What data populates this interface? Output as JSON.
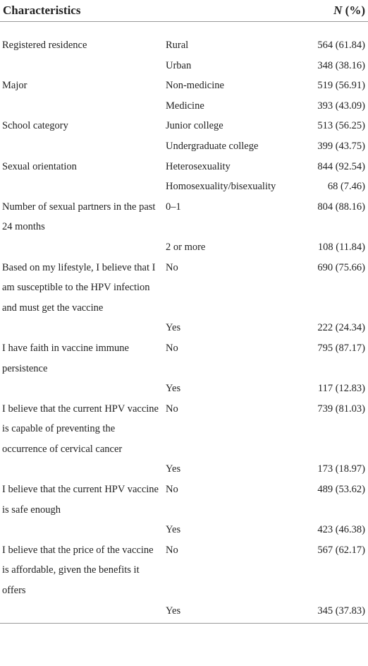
{
  "header": {
    "characteristics": "Characteristics",
    "n_symbol": "N",
    "n_unit": "(%)"
  },
  "table": {
    "rows": [
      [
        "Registered residence",
        "Rural",
        "564 (61.84)"
      ],
      [
        null,
        "Urban",
        "348 (38.16)"
      ],
      [
        "Major",
        "Non-medicine",
        "519 (56.91)"
      ],
      [
        null,
        "Medicine",
        "393 (43.09)"
      ],
      [
        "School category",
        "Junior college",
        "513 (56.25)"
      ],
      [
        null,
        "Undergraduate college",
        "399 (43.75)"
      ],
      [
        "Sexual orientation",
        "Heterosexuality",
        "844 (92.54)"
      ],
      [
        null,
        "Homosexuality/bisexuality",
        "68 (7.46)"
      ],
      [
        "Number of sexual partners in the past 24 months",
        "0–1",
        "804 (88.16)"
      ],
      [
        null,
        "2 or more",
        "108 (11.84)"
      ],
      [
        "Based on my lifestyle, I believe that I am susceptible to the HPV infection and must get the vaccine",
        "No",
        "690 (75.66)"
      ],
      [
        null,
        "Yes",
        "222 (24.34)"
      ],
      [
        "I have faith in vaccine immune persistence",
        "No",
        "795 (87.17)"
      ],
      [
        null,
        "Yes",
        "117 (12.83)"
      ],
      [
        "I believe that the current HPV vaccine is capable of preventing the occurrence of cervical cancer",
        "No",
        "739 (81.03)"
      ],
      [
        null,
        "Yes",
        "173 (18.97)"
      ],
      [
        "I believe that the current HPV vaccine is safe enough",
        "No",
        "489 (53.62)"
      ],
      [
        null,
        "Yes",
        "423 (46.38)"
      ],
      [
        "I believe that the price of the vaccine is affordable, given the benefits it offers",
        "No",
        "567 (62.17)"
      ],
      [
        null,
        "Yes",
        "345 (37.83)"
      ]
    ]
  }
}
